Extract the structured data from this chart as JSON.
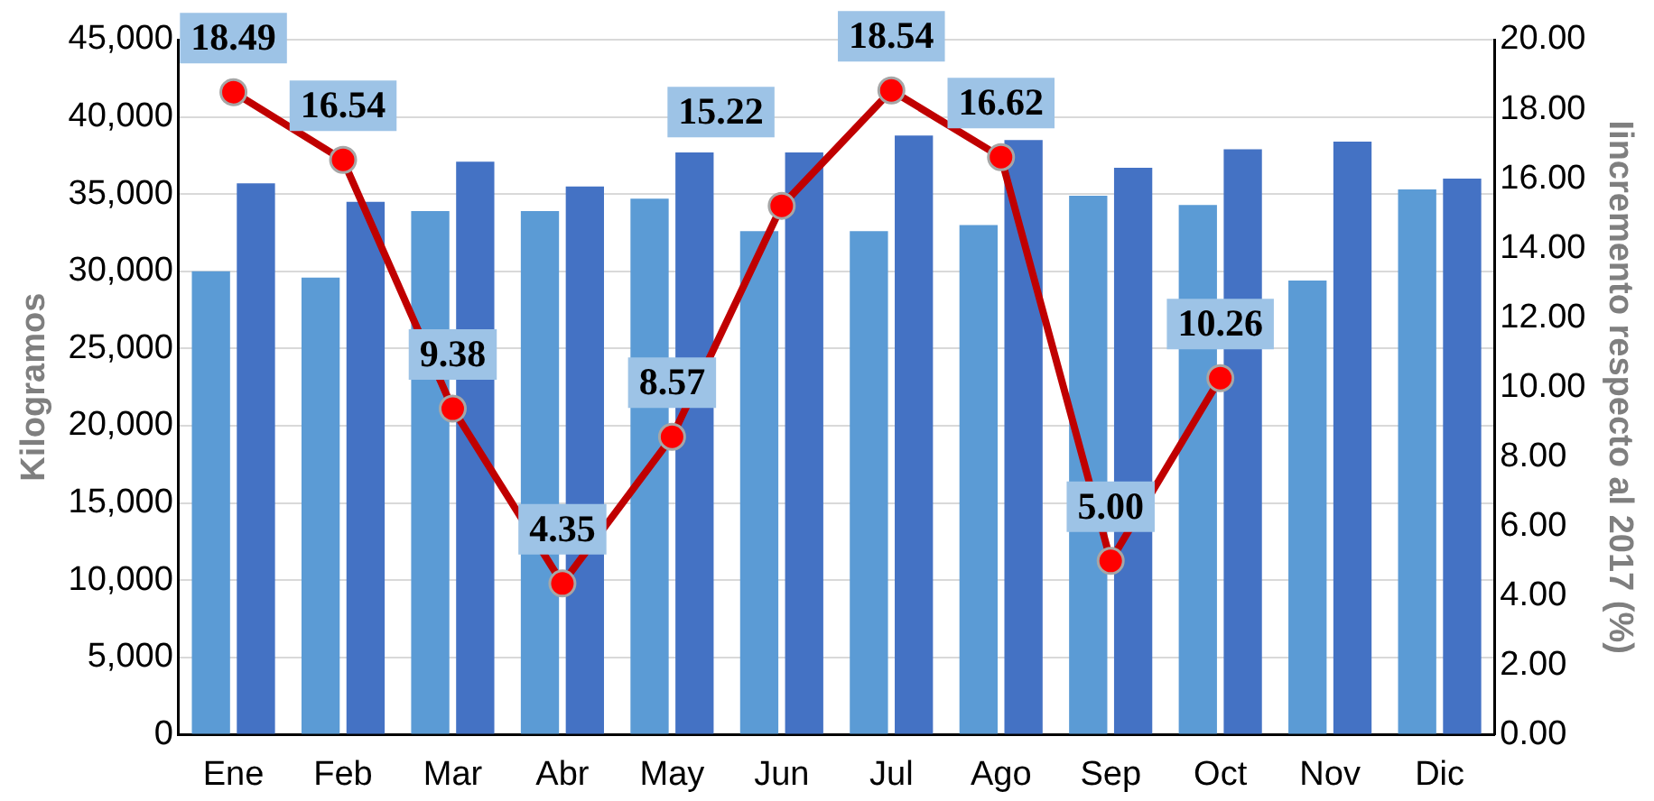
{
  "chart_data": {
    "type": "bar",
    "ylabel": "Kilogramos",
    "y2label": "Iincremento respecto al 2017 (%)",
    "categories": [
      "Ene",
      "Feb",
      "Mar",
      "Abr",
      "May",
      "Jun",
      "Jul",
      "Ago",
      "Sep",
      "Oct",
      "Nov",
      "Dic"
    ],
    "series": [
      {
        "color": "#5b9bd5",
        "values": [
          30000,
          29600,
          33900,
          33900,
          34700,
          32600,
          32600,
          33000,
          34900,
          34300,
          29400,
          35300
        ]
      },
      {
        "color": "#4472c4",
        "values": [
          35700,
          34500,
          37100,
          35500,
          37700,
          37700,
          38800,
          38500,
          36700,
          37900,
          38400,
          36000
        ]
      },
      {
        "type": "line",
        "axis": "y2",
        "color": "#c00000",
        "marker": "circle",
        "data_labels": true,
        "values": [
          18.49,
          16.54,
          9.38,
          4.35,
          8.57,
          15.22,
          18.54,
          16.62,
          5.0,
          10.26,
          null,
          null
        ],
        "value_labels": [
          "18.49",
          "16.54",
          "9.38",
          "4.35",
          "8.57",
          "15.22",
          "18.54",
          "16.62",
          "5.00",
          "10.26",
          null,
          null
        ]
      }
    ],
    "ylim": [
      0,
      45000
    ],
    "yticks": [
      {
        "value": 0,
        "label": "0"
      },
      {
        "value": 5000,
        "label": "5,000"
      },
      {
        "value": 10000,
        "label": "10,000"
      },
      {
        "value": 15000,
        "label": "15,000"
      },
      {
        "value": 20000,
        "label": "20,000"
      },
      {
        "value": 25000,
        "label": "25,000"
      },
      {
        "value": 30000,
        "label": "30,000"
      },
      {
        "value": 35000,
        "label": "35,000"
      },
      {
        "value": 40000,
        "label": "40,000"
      },
      {
        "value": 45000,
        "label": "45,000"
      }
    ],
    "y2lim": [
      0,
      20
    ],
    "y2ticks": [
      {
        "value": 0,
        "label": "0.00"
      },
      {
        "value": 2,
        "label": "2.00"
      },
      {
        "value": 4,
        "label": "4.00"
      },
      {
        "value": 6,
        "label": "6.00"
      },
      {
        "value": 8,
        "label": "8.00"
      },
      {
        "value": 10,
        "label": "10.00"
      },
      {
        "value": 12,
        "label": "12.00"
      },
      {
        "value": 14,
        "label": "14.00"
      },
      {
        "value": 16,
        "label": "16.00"
      },
      {
        "value": 18,
        "label": "18.00"
      },
      {
        "value": 20,
        "label": "20.00"
      }
    ],
    "grid": "y",
    "legend": false
  }
}
